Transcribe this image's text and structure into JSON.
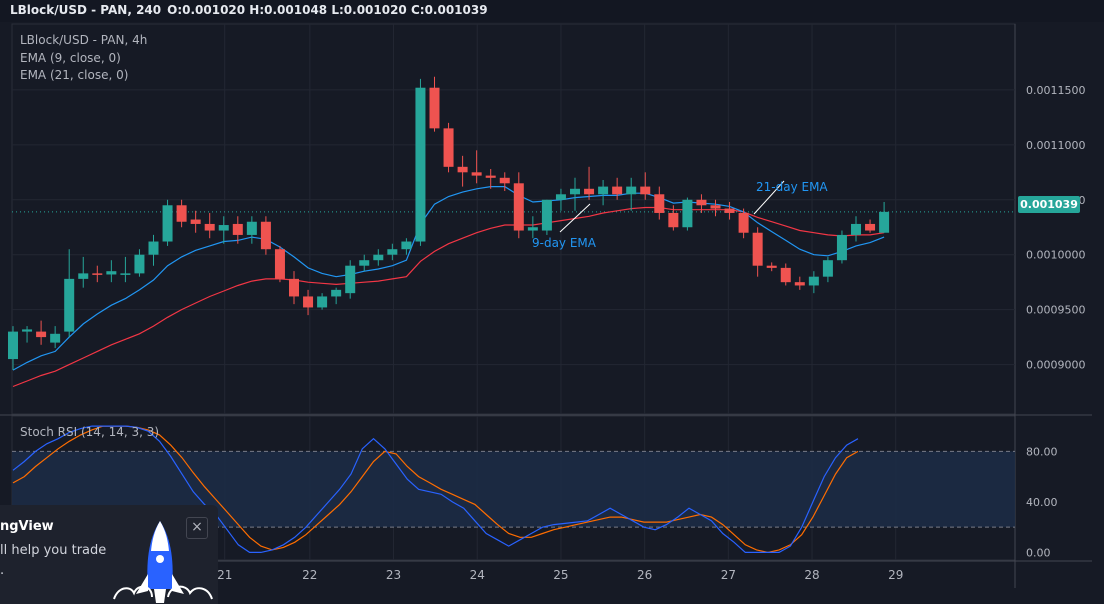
{
  "header": {
    "symbol": "LBlock/USD - PAN, 240",
    "ohlc": "O:0.001020 H:0.001048 L:0.001020 C:0.001039"
  },
  "legend": {
    "title": "LBlock/USD - PAN, 4h",
    "ema9": "EMA (9, close, 0)",
    "ema21": "EMA (21, close, 0)"
  },
  "stoch_label": "Stoch RSI (14, 14, 3, 3)",
  "last_price": "0.001039",
  "annotations": {
    "ema9": "9-day EMA",
    "ema21": "21-day EMA"
  },
  "promo": {
    "title": "ngView",
    "line1": "ll help you trade",
    "line2": ".",
    "close": "×"
  },
  "colors": {
    "up": "#26a69a",
    "down": "#ef5350",
    "ema9": "#2196f3",
    "ema21": "#f23645",
    "k": "#2962ff",
    "d": "#ff6d00",
    "band": "#1c2b45"
  },
  "chart_data": [
    {
      "type": "candlestick",
      "title": "LBlock/USD - PAN, 4h",
      "x_ticks": [
        {
          "label": "21",
          "pos": 15.05
        },
        {
          "label": "22",
          "pos": 21.1
        },
        {
          "label": "23",
          "pos": 27.05
        },
        {
          "label": "24",
          "pos": 33.0
        },
        {
          "label": "25",
          "pos": 38.95
        },
        {
          "label": "26",
          "pos": 44.9
        },
        {
          "label": "27",
          "pos": 50.85
        },
        {
          "label": "28",
          "pos": 56.8
        },
        {
          "label": "29",
          "pos": 62.75
        }
      ],
      "y_ticks": [
        "0.0009000",
        "0.0009500",
        "0.0010000",
        "0.0010500",
        "0.0011000",
        "0.0011500"
      ],
      "ylim": [
        0.000855,
        0.00121
      ],
      "last_price": 0.001039,
      "candles": [
        [
          0.000905,
          0.000935,
          0.000895,
          0.00093
        ],
        [
          0.00093,
          0.000935,
          0.00092,
          0.000932
        ],
        [
          0.00093,
          0.00094,
          0.000918,
          0.000925
        ],
        [
          0.00092,
          0.000935,
          0.000915,
          0.000928
        ],
        [
          0.00093,
          0.001005,
          0.000925,
          0.000978
        ],
        [
          0.000978,
          0.000998,
          0.00097,
          0.000983
        ],
        [
          0.000983,
          0.00099,
          0.000975,
          0.000982
        ],
        [
          0.000982,
          0.000995,
          0.000975,
          0.000985
        ],
        [
          0.000982,
          0.000998,
          0.000975,
          0.000983
        ],
        [
          0.000983,
          0.001005,
          0.00098,
          0.001
        ],
        [
          0.001,
          0.001018,
          0.00099,
          0.001012
        ],
        [
          0.001012,
          0.00105,
          0.001008,
          0.001045
        ],
        [
          0.001045,
          0.00105,
          0.001025,
          0.00103
        ],
        [
          0.001032,
          0.00104,
          0.00102,
          0.001028
        ],
        [
          0.001028,
          0.001038,
          0.001015,
          0.001022
        ],
        [
          0.001022,
          0.001035,
          0.00101,
          0.001027
        ],
        [
          0.001028,
          0.001035,
          0.00101,
          0.001018
        ],
        [
          0.001018,
          0.001035,
          0.00101,
          0.00103
        ],
        [
          0.00103,
          0.001035,
          0.001,
          0.001005
        ],
        [
          0.001005,
          0.001008,
          0.000975,
          0.000978
        ],
        [
          0.000978,
          0.000985,
          0.000955,
          0.000962
        ],
        [
          0.000962,
          0.000968,
          0.000945,
          0.000952
        ],
        [
          0.000952,
          0.000965,
          0.00095,
          0.000962
        ],
        [
          0.000962,
          0.00097,
          0.000955,
          0.000968
        ],
        [
          0.000965,
          0.000995,
          0.00096,
          0.00099
        ],
        [
          0.00099,
          0.001,
          0.000985,
          0.000995
        ],
        [
          0.000995,
          0.001005,
          0.00099,
          0.001
        ],
        [
          0.001,
          0.00101,
          0.000995,
          0.001005
        ],
        [
          0.001005,
          0.001015,
          0.001,
          0.001012
        ],
        [
          0.001012,
          0.00116,
          0.001008,
          0.001152
        ],
        [
          0.001152,
          0.001162,
          0.001112,
          0.001115
        ],
        [
          0.001115,
          0.00112,
          0.001075,
          0.00108
        ],
        [
          0.00108,
          0.00109,
          0.001062,
          0.001075
        ],
        [
          0.001075,
          0.001095,
          0.001065,
          0.001072
        ],
        [
          0.001072,
          0.001078,
          0.00106,
          0.00107
        ],
        [
          0.00107,
          0.001075,
          0.001058,
          0.001065
        ],
        [
          0.001065,
          0.001075,
          0.001015,
          0.001022
        ],
        [
          0.001022,
          0.001035,
          0.001015,
          0.001025
        ],
        [
          0.001022,
          0.00105,
          0.001018,
          0.00105
        ],
        [
          0.00105,
          0.00106,
          0.00104,
          0.001055
        ],
        [
          0.001055,
          0.00107,
          0.00104,
          0.00106
        ],
        [
          0.00106,
          0.00108,
          0.00105,
          0.001055
        ],
        [
          0.001055,
          0.001068,
          0.001045,
          0.001062
        ],
        [
          0.001062,
          0.00107,
          0.00105,
          0.001055
        ],
        [
          0.001055,
          0.00107,
          0.00104,
          0.001062
        ],
        [
          0.001062,
          0.001075,
          0.00105,
          0.001055
        ],
        [
          0.001055,
          0.001062,
          0.001032,
          0.001038
        ],
        [
          0.001038,
          0.001045,
          0.001022,
          0.001025
        ],
        [
          0.001025,
          0.001052,
          0.001022,
          0.00105
        ],
        [
          0.00105,
          0.001055,
          0.001038,
          0.001045
        ],
        [
          0.001045,
          0.00105,
          0.001035,
          0.001042
        ],
        [
          0.001042,
          0.001048,
          0.001032,
          0.001038
        ],
        [
          0.001038,
          0.001042,
          0.001015,
          0.00102
        ],
        [
          0.00102,
          0.001025,
          0.00098,
          0.00099
        ],
        [
          0.00099,
          0.000993,
          0.000985,
          0.000988
        ],
        [
          0.000988,
          0.000992,
          0.000972,
          0.000975
        ],
        [
          0.000975,
          0.00098,
          0.000968,
          0.000972
        ],
        [
          0.000972,
          0.000985,
          0.000965,
          0.00098
        ],
        [
          0.00098,
          0.000998,
          0.000975,
          0.000995
        ],
        [
          0.000995,
          0.001022,
          0.000992,
          0.001018
        ],
        [
          0.001018,
          0.001035,
          0.001012,
          0.001028
        ],
        [
          0.001028,
          0.001032,
          0.00102,
          0.001022
        ],
        [
          0.00102,
          0.001048,
          0.00102,
          0.001039
        ]
      ],
      "series": [
        {
          "name": "EMA (9, close, 0)",
          "values": [
            0.000895,
            0.000902,
            0.000908,
            0.000912,
            0.000925,
            0.000937,
            0.000946,
            0.000954,
            0.00096,
            0.000968,
            0.000977,
            0.00099,
            0.000998,
            0.001004,
            0.001008,
            0.001012,
            0.001013,
            0.001016,
            0.001014,
            0.001007,
            0.000998,
            0.000988,
            0.000983,
            0.00098,
            0.000982,
            0.000985,
            0.000987,
            0.00099,
            0.000995,
            0.001028,
            0.001046,
            0.001053,
            0.001057,
            0.00106,
            0.001062,
            0.001062,
            0.001054,
            0.001048,
            0.001049,
            0.00105,
            0.001052,
            0.001053,
            0.001054,
            0.001054,
            0.001056,
            0.001056,
            0.001052,
            0.001047,
            0.001048,
            0.001047,
            0.001046,
            0.001044,
            0.001039,
            0.001029,
            0.001021,
            0.001013,
            0.001005,
            0.001,
            0.000999,
            0.001003,
            0.001008,
            0.001011,
            0.001016
          ]
        },
        {
          "name": "EMA (21, close, 0)",
          "values": [
            0.00088,
            0.000885,
            0.00089,
            0.000894,
            0.0009,
            0.000906,
            0.000912,
            0.000918,
            0.000923,
            0.000928,
            0.000935,
            0.000943,
            0.00095,
            0.000956,
            0.000962,
            0.000967,
            0.000972,
            0.000976,
            0.000978,
            0.000978,
            0.000977,
            0.000975,
            0.000974,
            0.000973,
            0.000974,
            0.000975,
            0.000976,
            0.000978,
            0.00098,
            0.000994,
            0.001003,
            0.00101,
            0.001015,
            0.00102,
            0.001024,
            0.001027,
            0.001027,
            0.001027,
            0.001029,
            0.001031,
            0.001033,
            0.001035,
            0.001038,
            0.00104,
            0.001042,
            0.001043,
            0.001043,
            0.001041,
            0.001041,
            0.001041,
            0.001041,
            0.001041,
            0.001039,
            0.001034,
            0.00103,
            0.001026,
            0.001022,
            0.00102,
            0.001018,
            0.001017,
            0.001018,
            0.001018,
            0.00102
          ]
        }
      ]
    },
    {
      "type": "line",
      "title": "Stoch RSI (14, 14, 3, 3)",
      "y_ticks": [
        "0.00",
        "40.00",
        "80.00"
      ],
      "ylim": [
        -6,
        108
      ],
      "bands": [
        20,
        80
      ],
      "series": [
        {
          "name": "K",
          "values": [
            65,
            72,
            80,
            86,
            90,
            95,
            98,
            100,
            100,
            100,
            100,
            99,
            96,
            88,
            76,
            62,
            48,
            38,
            30,
            18,
            6,
            0,
            0,
            2,
            6,
            12,
            20,
            30,
            40,
            50,
            62,
            82,
            90,
            82,
            70,
            58,
            50,
            48,
            46,
            40,
            35,
            25,
            15,
            10,
            5,
            10,
            15,
            20,
            22,
            23,
            24,
            25,
            30,
            35,
            30,
            25,
            20,
            18,
            22,
            28,
            35,
            30,
            25,
            15,
            8,
            0,
            0,
            0,
            0,
            5,
            20,
            40,
            60,
            75,
            85,
            90
          ]
        },
        {
          "name": "D",
          "values": [
            55,
            60,
            68,
            75,
            82,
            88,
            93,
            97,
            100,
            100,
            100,
            99,
            97,
            93,
            85,
            75,
            63,
            52,
            42,
            32,
            22,
            12,
            5,
            2,
            4,
            8,
            14,
            22,
            30,
            38,
            48,
            60,
            72,
            80,
            78,
            68,
            60,
            55,
            50,
            46,
            42,
            38,
            30,
            22,
            15,
            12,
            12,
            15,
            18,
            20,
            22,
            24,
            26,
            28,
            28,
            26,
            24,
            24,
            24,
            26,
            28,
            30,
            28,
            22,
            14,
            6,
            2,
            0,
            2,
            6,
            14,
            28,
            45,
            62,
            75,
            80
          ]
        }
      ]
    }
  ]
}
